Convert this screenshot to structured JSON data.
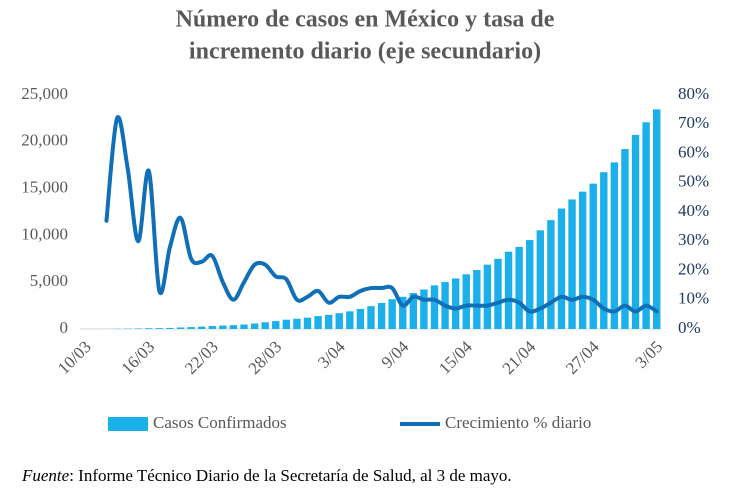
{
  "chart_data": {
    "type": "bar-line",
    "title": [
      "Número de casos en México y tasa de",
      "incremento diario (eje secundario)"
    ],
    "categories": [
      "10/03",
      null,
      null,
      null,
      null,
      null,
      "16/03",
      null,
      null,
      null,
      null,
      null,
      "22/03",
      null,
      null,
      null,
      null,
      null,
      "28/03",
      null,
      null,
      null,
      null,
      null,
      "3/04",
      null,
      null,
      null,
      null,
      null,
      "9/04",
      null,
      null,
      null,
      null,
      null,
      "15/04",
      null,
      null,
      null,
      null,
      null,
      "21/04",
      null,
      null,
      null,
      null,
      null,
      "27/04",
      null,
      null,
      null,
      null,
      null,
      "3/05"
    ],
    "series": [
      {
        "name": "Casos Confirmados",
        "color": "#1cb0ea",
        "kind": "bar",
        "values": [
          7,
          7,
          12,
          26,
          41,
          53,
          82,
          93,
          118,
          164,
          203,
          251,
          316,
          367,
          405,
          475,
          585,
          717,
          848,
          993,
          1094,
          1215,
          1378,
          1510,
          1688,
          1890,
          2143,
          2439,
          2785,
          3181,
          3441,
          3844,
          4219,
          4661,
          5014,
          5399,
          5847,
          6297,
          6875,
          7497,
          8261,
          8772,
          9501,
          10544,
          11633,
          12872,
          13842,
          14677,
          15529,
          16752,
          17799,
          19224,
          20739,
          22088,
          23471
        ]
      },
      {
        "name": "Crecimiento % diario",
        "color": "#0f6fb8",
        "kind": "line",
        "axis": "y2",
        "values": [
          null,
          null,
          37,
          72,
          55,
          30,
          54,
          13,
          28,
          38,
          24,
          23,
          25,
          16,
          10,
          16,
          22,
          22,
          18,
          17,
          10,
          11,
          13,
          9,
          11,
          11,
          13,
          14,
          14,
          14,
          8,
          11,
          10,
          10,
          8,
          7,
          8,
          8,
          8,
          9,
          10,
          9,
          6,
          7,
          9,
          11,
          10,
          11,
          10,
          7,
          6,
          8,
          6,
          8,
          6
        ]
      }
    ],
    "ylim": [
      0,
      25000
    ],
    "yticks": [
      0,
      {
        "value": 5000,
        "label": "5,000"
      },
      {
        "value": 10000,
        "label": "10,000"
      },
      {
        "value": 15000,
        "label": "15,000"
      },
      {
        "value": 20000,
        "label": "20,000"
      },
      {
        "value": 25000,
        "label": "25,000"
      }
    ],
    "y2lim": [
      0,
      80
    ],
    "y2ticks": [
      {
        "value": 0,
        "label": "0%"
      },
      {
        "value": 10,
        "label": "10%"
      },
      {
        "value": 20,
        "label": "20%"
      },
      {
        "value": 30,
        "label": "30%"
      },
      {
        "value": 40,
        "label": "40%"
      },
      {
        "value": 50,
        "label": "50%"
      },
      {
        "value": 60,
        "label": "60%"
      },
      {
        "value": 70,
        "label": "70%"
      },
      {
        "value": 80,
        "label": "80%"
      }
    ],
    "legend": "bottom"
  },
  "footer": {
    "source_label": "Fuente",
    "text": ": Informe Técnico Diario de la Secretaría de Salud, al 3 de mayo."
  }
}
